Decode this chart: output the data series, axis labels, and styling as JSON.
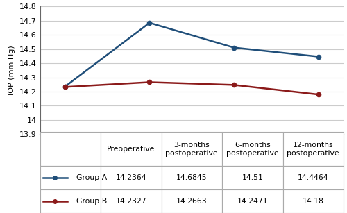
{
  "x_positions": [
    0,
    1,
    2,
    3
  ],
  "group_a": [
    14.2364,
    14.6845,
    14.51,
    14.4464
  ],
  "group_b": [
    14.2327,
    14.2663,
    14.2471,
    14.18
  ],
  "group_a_color": "#1f4e79",
  "group_b_color": "#8b1a1a",
  "ylim": [
    13.9,
    14.8
  ],
  "yticks": [
    13.9,
    14.0,
    14.1,
    14.2,
    14.3,
    14.4,
    14.5,
    14.6,
    14.7,
    14.8
  ],
  "ytick_labels": [
    "13.9",
    "14",
    "14.1",
    "14.2",
    "14.3",
    "14.4",
    "14.5",
    "14.6",
    "14.7",
    "14.8"
  ],
  "ylabel": "IOP (mm Hg)",
  "table_col0_header": "",
  "table_col_headers": [
    "Preoperative",
    "3-months\npostoperative",
    "6-months\npostoperative",
    "12-months\npostoperative"
  ],
  "table_row_a": [
    "14.2364",
    "14.6845",
    "14.51",
    "14.4464"
  ],
  "table_row_b": [
    "14.2327",
    "14.2663",
    "14.2471",
    "14.18"
  ],
  "legend_label_a": "Group A",
  "legend_label_b": "Group B",
  "background_color": "#ffffff",
  "grid_color": "#cccccc",
  "marker": "o",
  "linewidth": 1.8,
  "markersize": 4.5,
  "font_size": 8.0,
  "table_font_size": 7.8
}
